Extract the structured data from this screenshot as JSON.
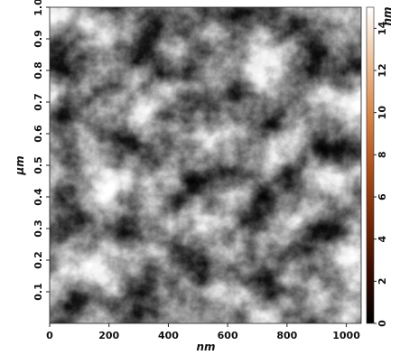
{
  "chart_data": {
    "type": "heatmap",
    "title": "",
    "xlabel": "nm",
    "ylabel": "µm",
    "colorbar_label": "nm",
    "xlim": [
      0,
      1050
    ],
    "ylim": [
      0,
      1.0
    ],
    "zlim": [
      0,
      15
    ],
    "x_ticks": [
      0,
      200,
      400,
      600,
      800,
      1000
    ],
    "x_tick_labels": [
      "0",
      "200",
      "400",
      "600",
      "800",
      "1000"
    ],
    "y_ticks": [
      0.1,
      0.2,
      0.3,
      0.4,
      0.5,
      0.6,
      0.7,
      0.8,
      0.9,
      1.0
    ],
    "y_tick_labels": [
      "0.1",
      "0.2",
      "0.3",
      "0.4",
      "0.5",
      "0.6",
      "0.7",
      "0.8",
      "0.9",
      "1.0"
    ],
    "colorbar_ticks": [
      0,
      2,
      4,
      6,
      8,
      10,
      12,
      14
    ],
    "colorbar_tick_labels": [
      "0",
      "2",
      "4",
      "6",
      "8",
      "10",
      "12",
      "14"
    ],
    "colormap": [
      "#000000",
      "#3a0c02",
      "#7a2a08",
      "#b0521c",
      "#d8874a",
      "#efc39a",
      "#ffffff"
    ],
    "grid": false,
    "legend": "colorbar-right"
  }
}
